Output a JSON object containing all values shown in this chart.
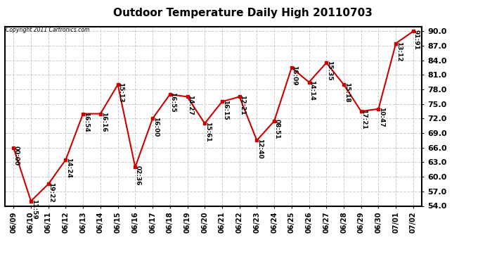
{
  "title": "Outdoor Temperature Daily High 20110703",
  "copyright": "Copyright 2011 Cartronics.com",
  "x_labels": [
    "06/09",
    "06/10",
    "06/11",
    "06/12",
    "06/13",
    "06/14",
    "06/15",
    "06/16",
    "06/17",
    "06/18",
    "06/19",
    "06/20",
    "06/21",
    "06/22",
    "06/23",
    "06/24",
    "06/25",
    "06/26",
    "06/27",
    "06/28",
    "06/29",
    "06/30",
    "07/01",
    "07/02"
  ],
  "y_values": [
    66.0,
    55.0,
    58.5,
    63.5,
    73.0,
    73.0,
    79.0,
    62.0,
    72.0,
    77.0,
    76.5,
    71.0,
    75.5,
    76.5,
    67.5,
    71.5,
    82.5,
    79.5,
    83.5,
    79.0,
    73.5,
    74.0,
    87.5,
    90.0
  ],
  "annotations": [
    "00:00",
    "11:59",
    "19:22",
    "14:24",
    "16:54",
    "16:16",
    "15:13",
    "02:36",
    "16:00",
    "16:55",
    "14:27",
    "15:61",
    "16:15",
    "12:21",
    "12:40",
    "08:51",
    "16:09",
    "14:14",
    "15:35",
    "15:18",
    "17:21",
    "10:47",
    "13:12",
    "91:91"
  ],
  "ylim_min": 54.0,
  "ylim_max": 91.0,
  "yticks": [
    54.0,
    57.0,
    60.0,
    63.0,
    66.0,
    69.0,
    72.0,
    75.0,
    78.0,
    81.0,
    84.0,
    87.0,
    90.0
  ],
  "line_color": "#cc0000",
  "bg_color": "#ffffff",
  "grid_color": "#cccccc",
  "title_fontsize": 11,
  "annot_fontsize": 6.5,
  "xlabel_fontsize": 7,
  "ylabel_fontsize": 8
}
